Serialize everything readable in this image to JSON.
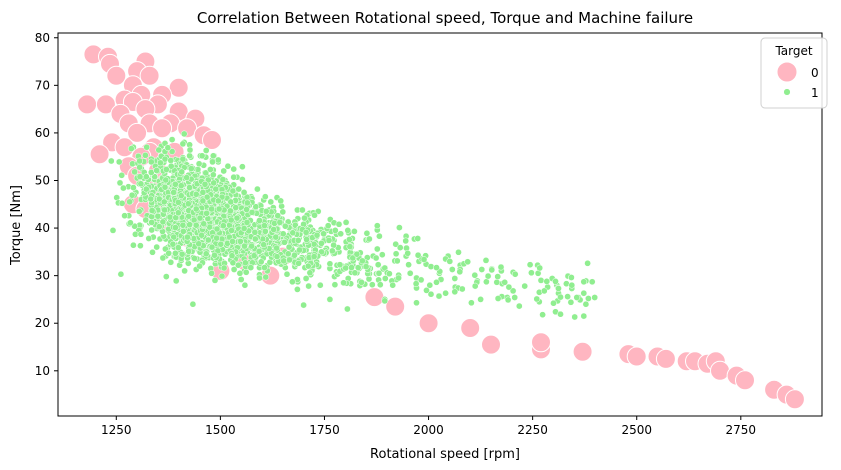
{
  "chart_data": {
    "type": "scatter",
    "title": "Correlation Between Rotational speed, Torque and Machine failure",
    "xlabel": "Rotational speed [rpm]",
    "ylabel": "Torque [Nm]",
    "xlim": [
      1110,
      2945
    ],
    "ylim": [
      0.5,
      81
    ],
    "xticks": [
      1250,
      1500,
      1750,
      2000,
      2250,
      2500,
      2750
    ],
    "yticks": [
      10,
      20,
      30,
      40,
      50,
      60,
      70,
      80
    ],
    "grid": false,
    "legend": {
      "title": "Target",
      "placement": "top-right"
    },
    "colors": {
      "0": "#ffb6c1",
      "1": "#90ee90"
    },
    "series": [
      {
        "name": "0",
        "marker": "large",
        "points": [
          [
            1195,
            76.5
          ],
          [
            1230,
            76
          ],
          [
            1235,
            74.5
          ],
          [
            1320,
            75
          ],
          [
            1300,
            73
          ],
          [
            1250,
            72
          ],
          [
            1330,
            72
          ],
          [
            1400,
            69.5
          ],
          [
            1290,
            70
          ],
          [
            1310,
            68
          ],
          [
            1270,
            67
          ],
          [
            1360,
            68
          ],
          [
            1180,
            66
          ],
          [
            1225,
            66
          ],
          [
            1290,
            66.5
          ],
          [
            1350,
            66
          ],
          [
            1400,
            64.5
          ],
          [
            1320,
            65
          ],
          [
            1440,
            63
          ],
          [
            1260,
            64
          ],
          [
            1280,
            62
          ],
          [
            1330,
            62
          ],
          [
            1380,
            62
          ],
          [
            1300,
            60
          ],
          [
            1360,
            61
          ],
          [
            1420,
            61
          ],
          [
            1460,
            59.5
          ],
          [
            1480,
            58.5
          ],
          [
            1240,
            58
          ],
          [
            1270,
            57
          ],
          [
            1340,
            57
          ],
          [
            1390,
            56
          ],
          [
            1330,
            56
          ],
          [
            1210,
            55.5
          ],
          [
            1310,
            55
          ],
          [
            1280,
            53
          ],
          [
            1350,
            52
          ],
          [
            1300,
            51
          ],
          [
            1400,
            50
          ],
          [
            1460,
            48
          ],
          [
            1340,
            48
          ],
          [
            1500,
            46
          ],
          [
            1290,
            45
          ],
          [
            1320,
            44
          ],
          [
            1360,
            43
          ],
          [
            1440,
            42
          ],
          [
            1380,
            41
          ],
          [
            1420,
            38
          ],
          [
            1530,
            36
          ],
          [
            1500,
            31
          ],
          [
            1560,
            33
          ],
          [
            1620,
            30
          ],
          [
            1650,
            34
          ],
          [
            1870,
            25.5
          ],
          [
            1920,
            23.5
          ],
          [
            2000,
            20
          ],
          [
            2100,
            19
          ],
          [
            2150,
            15.5
          ],
          [
            2270,
            14.5
          ],
          [
            2270,
            16
          ],
          [
            2370,
            14
          ],
          [
            2480,
            13.5
          ],
          [
            2500,
            13
          ],
          [
            2550,
            13
          ],
          [
            2570,
            12.5
          ],
          [
            2620,
            12
          ],
          [
            2640,
            12
          ],
          [
            2670,
            11.5
          ],
          [
            2690,
            12
          ],
          [
            2700,
            10
          ],
          [
            2740,
            9
          ],
          [
            2760,
            8
          ],
          [
            2830,
            6
          ],
          [
            2860,
            5
          ],
          [
            2880,
            4
          ]
        ]
      },
      {
        "name": "1",
        "marker": "small",
        "points": []
      }
    ]
  }
}
